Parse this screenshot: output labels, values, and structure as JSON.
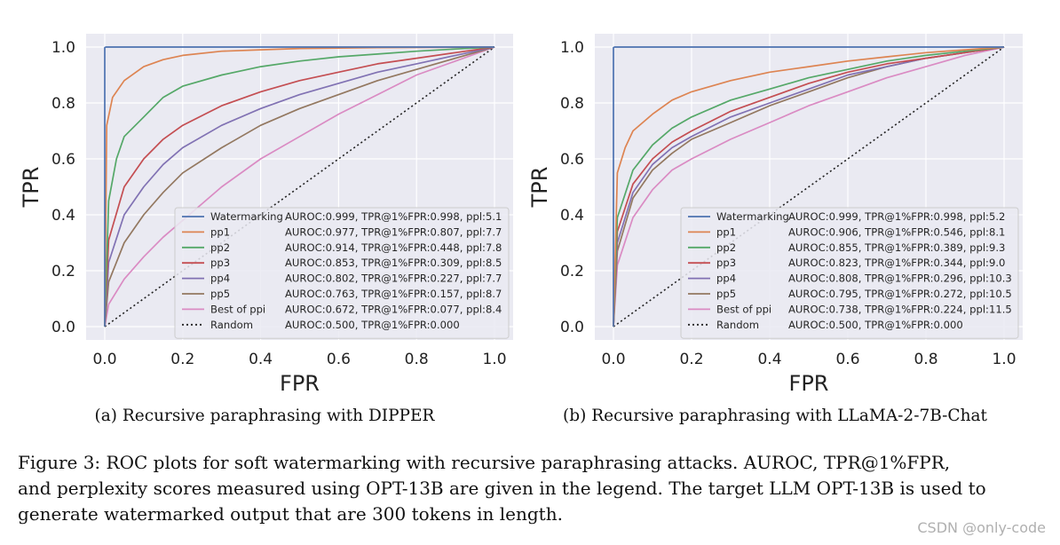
{
  "panels": [
    {
      "chart_data": {
        "type": "line",
        "caption": "(a) Recursive paraphrasing with DIPPER",
        "xlabel": "FPR",
        "ylabel": "TPR",
        "xlim": [
          0,
          1
        ],
        "ylim": [
          0,
          1
        ],
        "ticks": [
          "0.0",
          "0.2",
          "0.4",
          "0.6",
          "0.8",
          "1.0"
        ],
        "grid": true,
        "legend_position": "lower-right",
        "series": [
          {
            "name": "Watermarking",
            "stats": "AUROC:0.999, TPR@1%FPR:0.998, ppl:5.1",
            "color": "#4c72b0",
            "dash": "",
            "x": [
              0,
              0,
              0.003,
              1
            ],
            "y": [
              0,
              0.998,
              1,
              1
            ]
          },
          {
            "name": "pp1",
            "stats": "AUROC:0.977, TPR@1%FPR:0.807, ppl:7.7",
            "color": "#dd8452",
            "dash": "",
            "x": [
              0,
              0.005,
              0.02,
              0.05,
              0.1,
              0.15,
              0.2,
              0.3,
              0.4,
              0.5,
              0.7,
              1
            ],
            "y": [
              0,
              0.72,
              0.82,
              0.88,
              0.93,
              0.955,
              0.97,
              0.985,
              0.99,
              0.995,
              0.998,
              1
            ]
          },
          {
            "name": "pp2",
            "stats": "AUROC:0.914, TPR@1%FPR:0.448, ppl:7.8",
            "color": "#55a868",
            "dash": "",
            "x": [
              0,
              0.01,
              0.03,
              0.05,
              0.1,
              0.15,
              0.2,
              0.3,
              0.4,
              0.5,
              0.6,
              0.7,
              0.8,
              0.9,
              1
            ],
            "y": [
              0,
              0.45,
              0.6,
              0.68,
              0.75,
              0.82,
              0.86,
              0.9,
              0.93,
              0.95,
              0.965,
              0.975,
              0.985,
              0.993,
              1
            ]
          },
          {
            "name": "pp3",
            "stats": "AUROC:0.853, TPR@1%FPR:0.309, ppl:8.5",
            "color": "#c44e52",
            "dash": "",
            "x": [
              0,
              0.01,
              0.05,
              0.1,
              0.15,
              0.2,
              0.3,
              0.4,
              0.5,
              0.6,
              0.7,
              0.8,
              0.9,
              1
            ],
            "y": [
              0,
              0.31,
              0.5,
              0.6,
              0.67,
              0.72,
              0.79,
              0.84,
              0.88,
              0.91,
              0.94,
              0.96,
              0.98,
              1
            ]
          },
          {
            "name": "pp4",
            "stats": "AUROC:0.802, TPR@1%FPR:0.227, ppl:7.7",
            "color": "#8172b3",
            "dash": "",
            "x": [
              0,
              0.01,
              0.05,
              0.1,
              0.15,
              0.2,
              0.3,
              0.4,
              0.5,
              0.6,
              0.7,
              0.8,
              0.9,
              1
            ],
            "y": [
              0,
              0.23,
              0.4,
              0.5,
              0.58,
              0.64,
              0.72,
              0.78,
              0.83,
              0.87,
              0.91,
              0.94,
              0.97,
              1
            ]
          },
          {
            "name": "pp5",
            "stats": "AUROC:0.763, TPR@1%FPR:0.157, ppl:8.7",
            "color": "#937860",
            "dash": "",
            "x": [
              0,
              0.01,
              0.05,
              0.1,
              0.15,
              0.2,
              0.3,
              0.4,
              0.5,
              0.6,
              0.7,
              0.8,
              0.9,
              1
            ],
            "y": [
              0,
              0.16,
              0.3,
              0.4,
              0.48,
              0.55,
              0.64,
              0.72,
              0.78,
              0.83,
              0.88,
              0.92,
              0.96,
              1
            ]
          },
          {
            "name": "Best of ppi",
            "stats": "AUROC:0.672, TPR@1%FPR:0.077, ppl:8.4",
            "color": "#da8bc3",
            "dash": "",
            "x": [
              0,
              0.01,
              0.05,
              0.1,
              0.15,
              0.2,
              0.25,
              0.3,
              0.4,
              0.5,
              0.6,
              0.7,
              0.8,
              0.9,
              1
            ],
            "y": [
              0,
              0.08,
              0.17,
              0.25,
              0.32,
              0.38,
              0.44,
              0.5,
              0.6,
              0.68,
              0.76,
              0.83,
              0.9,
              0.95,
              1
            ]
          },
          {
            "name": "Random",
            "stats": "AUROC:0.500, TPR@1%FPR:0.000",
            "color": "#222222",
            "dash": "2,3",
            "x": [
              0,
              1
            ],
            "y": [
              0,
              1
            ]
          }
        ]
      }
    },
    {
      "chart_data": {
        "type": "line",
        "caption": "(b) Recursive paraphrasing with LLaMA-2-7B-Chat",
        "xlabel": "FPR",
        "ylabel": "TPR",
        "xlim": [
          0,
          1
        ],
        "ylim": [
          0,
          1
        ],
        "ticks": [
          "0.0",
          "0.2",
          "0.4",
          "0.6",
          "0.8",
          "1.0"
        ],
        "grid": true,
        "legend_position": "lower-right",
        "series": [
          {
            "name": "Watermarking",
            "stats": "AUROC:0.999, TPR@1%FPR:0.998, ppl:5.2",
            "color": "#4c72b0",
            "dash": "",
            "x": [
              0,
              0,
              0.003,
              1
            ],
            "y": [
              0,
              0.998,
              1,
              1
            ]
          },
          {
            "name": "pp1",
            "stats": "AUROC:0.906, TPR@1%FPR:0.546, ppl:8.1",
            "color": "#dd8452",
            "dash": "",
            "x": [
              0,
              0.01,
              0.03,
              0.05,
              0.1,
              0.15,
              0.2,
              0.3,
              0.4,
              0.5,
              0.6,
              0.7,
              0.8,
              0.9,
              1
            ],
            "y": [
              0,
              0.55,
              0.64,
              0.7,
              0.76,
              0.81,
              0.84,
              0.88,
              0.91,
              0.93,
              0.95,
              0.965,
              0.98,
              0.99,
              1
            ]
          },
          {
            "name": "pp2",
            "stats": "AUROC:0.855, TPR@1%FPR:0.389, ppl:9.3",
            "color": "#55a868",
            "dash": "",
            "x": [
              0,
              0.01,
              0.05,
              0.1,
              0.15,
              0.2,
              0.3,
              0.4,
              0.5,
              0.6,
              0.7,
              0.8,
              0.9,
              1
            ],
            "y": [
              0,
              0.39,
              0.56,
              0.65,
              0.71,
              0.75,
              0.81,
              0.85,
              0.89,
              0.92,
              0.95,
              0.97,
              0.985,
              1
            ]
          },
          {
            "name": "pp3",
            "stats": "AUROC:0.823, TPR@1%FPR:0.344, ppl:9.0",
            "color": "#c44e52",
            "dash": "",
            "x": [
              0,
              0.01,
              0.05,
              0.1,
              0.15,
              0.2,
              0.3,
              0.4,
              0.5,
              0.6,
              0.7,
              0.8,
              0.9,
              1
            ],
            "y": [
              0,
              0.34,
              0.51,
              0.6,
              0.66,
              0.7,
              0.77,
              0.82,
              0.87,
              0.91,
              0.94,
              0.96,
              0.98,
              1
            ]
          },
          {
            "name": "pp4",
            "stats": "AUROC:0.808, TPR@1%FPR:0.296, ppl:10.3",
            "color": "#8172b3",
            "dash": "",
            "x": [
              0,
              0.01,
              0.05,
              0.1,
              0.15,
              0.2,
              0.3,
              0.4,
              0.5,
              0.6,
              0.7,
              0.8,
              0.9,
              1
            ],
            "y": [
              0,
              0.3,
              0.48,
              0.58,
              0.64,
              0.68,
              0.75,
              0.8,
              0.85,
              0.9,
              0.93,
              0.96,
              0.98,
              1
            ]
          },
          {
            "name": "pp5",
            "stats": "AUROC:0.795, TPR@1%FPR:0.272, ppl:10.5",
            "color": "#937860",
            "dash": "",
            "x": [
              0,
              0.01,
              0.05,
              0.1,
              0.15,
              0.2,
              0.3,
              0.4,
              0.5,
              0.6,
              0.7,
              0.8,
              0.9,
              1
            ],
            "y": [
              0,
              0.27,
              0.46,
              0.56,
              0.62,
              0.67,
              0.73,
              0.79,
              0.84,
              0.89,
              0.93,
              0.96,
              0.98,
              1
            ]
          },
          {
            "name": "Best of ppi",
            "stats": "AUROC:0.738, TPR@1%FPR:0.224, ppl:11.5",
            "color": "#da8bc3",
            "dash": "",
            "x": [
              0,
              0.01,
              0.05,
              0.1,
              0.15,
              0.2,
              0.3,
              0.4,
              0.5,
              0.6,
              0.7,
              0.8,
              0.9,
              1
            ],
            "y": [
              0,
              0.22,
              0.39,
              0.49,
              0.56,
              0.6,
              0.67,
              0.73,
              0.79,
              0.84,
              0.89,
              0.93,
              0.97,
              1
            ]
          },
          {
            "name": "Random",
            "stats": "AUROC:0.500, TPR@1%FPR:0.000",
            "color": "#222222",
            "dash": "2,3",
            "x": [
              0,
              1
            ],
            "y": [
              0,
              1
            ]
          }
        ]
      }
    }
  ],
  "figure_caption": [
    "Figure 3: ROC plots for soft watermarking with recursive paraphrasing attacks. AUROC, TPR@1%FPR,",
    "and perplexity scores measured using OPT-13B are given in the legend. The target LLM OPT-13B is used to",
    "generate watermarked output that are 300 tokens in length."
  ],
  "watermark_text": "CSDN @only-code"
}
